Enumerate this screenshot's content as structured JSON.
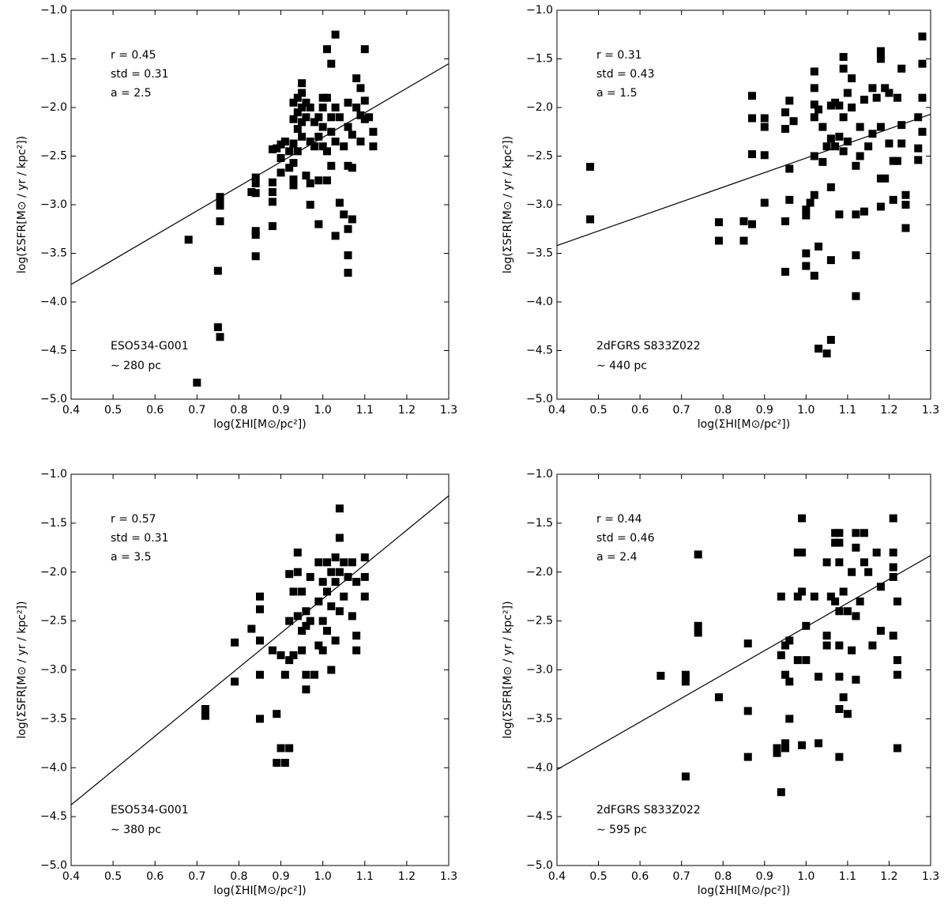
{
  "chart_data": [
    {
      "type": "scatter",
      "color": "#000000",
      "xlabel": "log(ΣHI[M⊙/pc²])",
      "ylabel": "log(ΣSFR[M⊙ / yr / kpc²])",
      "annotations": [
        "r = 0.45",
        "std = 0.31",
        "a = 2.5"
      ],
      "label": [
        "ESO534-G001",
        "∼ 280 pc"
      ],
      "xlim": [
        0.4,
        1.3
      ],
      "ylim": [
        -5,
        -1
      ],
      "xticks": [
        0.4,
        0.5,
        0.6,
        0.7,
        0.8,
        0.9,
        {
          "value": 1,
          "label": "1.0"
        },
        1.1,
        1.2,
        1.3
      ],
      "yticks": [
        {
          "value": -5,
          "label": "−5.0"
        },
        {
          "value": -4.5,
          "label": "−4.5"
        },
        {
          "value": -4,
          "label": "−4.0"
        },
        {
          "value": -3.5,
          "label": "−3.5"
        },
        {
          "value": -3,
          "label": "−3.0"
        },
        {
          "value": -2.5,
          "label": "−2.5"
        },
        {
          "value": -2,
          "label": "−2.0"
        },
        {
          "value": -1.5,
          "label": "−1.5"
        },
        {
          "value": -1,
          "label": "−1.0"
        }
      ],
      "fit_line": {
        "x": [
          0.4,
          1.3
        ],
        "values": [
          -3.82,
          -1.55
        ]
      },
      "x": [
        0.68,
        0.7,
        0.75,
        0.75,
        0.755,
        0.755,
        0.755,
        0.755,
        0.755,
        0.84,
        0.84,
        0.84,
        0.84,
        0.84,
        0.84,
        0.83,
        0.88,
        0.88,
        0.88,
        0.88,
        0.88,
        0.89,
        0.9,
        0.9,
        0.9,
        0.91,
        0.92,
        0.92,
        0.93,
        0.93,
        0.93,
        0.93,
        0.93,
        0.93,
        0.94,
        0.94,
        0.94,
        0.94,
        0.95,
        0.95,
        0.95,
        0.95,
        0.95,
        0.96,
        0.96,
        0.96,
        0.97,
        0.97,
        0.97,
        0.97,
        0.98,
        0.98,
        0.99,
        0.99,
        0.99,
        0.99,
        1.0,
        1.0,
        1.0,
        1.0,
        1.01,
        1.01,
        1.01,
        1.01,
        1.02,
        1.02,
        1.02,
        1.02,
        1.03,
        1.03,
        1.03,
        1.03,
        1.04,
        1.04,
        1.05,
        1.05,
        1.06,
        1.06,
        1.06,
        1.06,
        1.06,
        1.07,
        1.07,
        1.08,
        1.08,
        1.09,
        1.09,
        1.09,
        1.1,
        1.1,
        1.1,
        1.11,
        1.12,
        1.12,
        1.07,
        1.06
      ],
      "values": [
        -3.36,
        -4.83,
        -3.68,
        -4.26,
        -4.36,
        -2.92,
        -2.97,
        -3.01,
        -3.17,
        -2.72,
        -2.78,
        -2.88,
        -3.27,
        -3.31,
        -3.53,
        -2.87,
        -2.43,
        -2.77,
        -2.87,
        -2.97,
        -3.22,
        -2.42,
        -2.38,
        -2.52,
        -2.67,
        -2.35,
        -2.45,
        -2.62,
        -1.95,
        -2.12,
        -2.37,
        -2.57,
        -2.74,
        -2.8,
        -1.9,
        -2.05,
        -2.22,
        -2.45,
        -1.75,
        -1.85,
        -2.0,
        -2.15,
        -2.3,
        -1.95,
        -2.1,
        -2.7,
        -2.0,
        -2.35,
        -2.78,
        -3.0,
        -2.15,
        -2.4,
        -2.1,
        -2.3,
        -2.75,
        -3.2,
        -1.9,
        -2.0,
        -2.2,
        -2.4,
        -1.4,
        -1.9,
        -2.45,
        -2.75,
        -1.55,
        -2.1,
        -2.25,
        -2.6,
        -1.25,
        -2.0,
        -2.35,
        -3.32,
        -2.1,
        -2.98,
        -2.4,
        -3.1,
        -1.95,
        -2.2,
        -2.6,
        -3.52,
        -3.7,
        -2.28,
        -2.62,
        -1.7,
        -2.0,
        -1.8,
        -2.08,
        -2.35,
        -1.4,
        -1.93,
        -2.12,
        -2.1,
        -2.25,
        -2.4,
        -3.15,
        -3.25
      ]
    },
    {
      "type": "scatter",
      "color": "#000000",
      "xlabel": "log(ΣHI[M⊙/pc²])",
      "ylabel": "log(ΣSFR[M⊙ / yr / kpc²])",
      "annotations": [
        "r = 0.31",
        "std = 0.43",
        "a = 1.5"
      ],
      "label": [
        "2dFGRS S833Z022",
        "∼ 440 pc"
      ],
      "xlim": [
        0.4,
        1.3
      ],
      "ylim": [
        -5,
        -1
      ],
      "xticks": [
        0.4,
        0.5,
        0.6,
        0.7,
        0.8,
        0.9,
        {
          "value": 1,
          "label": "1.0"
        },
        1.1,
        1.2,
        1.3
      ],
      "yticks": [
        {
          "value": -5,
          "label": "−5.0"
        },
        {
          "value": -4.5,
          "label": "−4.5"
        },
        {
          "value": -4,
          "label": "−4.0"
        },
        {
          "value": -3.5,
          "label": "−3.5"
        },
        {
          "value": -3,
          "label": "−3.0"
        },
        {
          "value": -2.5,
          "label": "−2.5"
        },
        {
          "value": -2,
          "label": "−2.0"
        },
        {
          "value": -1.5,
          "label": "−1.5"
        },
        {
          "value": -1,
          "label": "−1.0"
        }
      ],
      "fit_line": {
        "x": [
          0.4,
          1.3
        ],
        "values": [
          -3.42,
          -2.07
        ]
      },
      "x": [
        0.48,
        0.48,
        0.79,
        0.79,
        0.85,
        0.85,
        0.87,
        0.87,
        0.87,
        0.87,
        0.9,
        0.9,
        0.9,
        0.9,
        0.95,
        0.95,
        0.95,
        0.95,
        0.96,
        0.96,
        0.96,
        0.97,
        1.0,
        1.0,
        1.0,
        1.0,
        1.01,
        1.02,
        1.02,
        1.02,
        1.02,
        1.02,
        1.02,
        1.02,
        1.03,
        1.03,
        1.03,
        1.04,
        1.04,
        1.05,
        1.05,
        1.06,
        1.06,
        1.06,
        1.06,
        1.06,
        1.07,
        1.07,
        1.08,
        1.08,
        1.08,
        1.09,
        1.09,
        1.09,
        1.09,
        1.1,
        1.1,
        1.11,
        1.11,
        1.12,
        1.12,
        1.12,
        1.12,
        1.13,
        1.13,
        1.14,
        1.14,
        1.15,
        1.16,
        1.16,
        1.17,
        1.18,
        1.18,
        1.18,
        1.18,
        1.18,
        1.19,
        1.19,
        1.2,
        1.2,
        1.21,
        1.21,
        1.22,
        1.22,
        1.23,
        1.23,
        1.23,
        1.24,
        1.24,
        1.24,
        1.27,
        1.27,
        1.27,
        1.28,
        1.28,
        1.28,
        1.28
      ],
      "values": [
        -2.61,
        -3.15,
        -3.18,
        -3.37,
        -3.17,
        -3.37,
        -1.88,
        -2.11,
        -2.48,
        -3.2,
        -2.11,
        -2.2,
        -2.49,
        -2.98,
        -3.69,
        -3.17,
        -2.22,
        -2.05,
        -1.93,
        -2.63,
        -2.95,
        -2.14,
        -3.05,
        -3.11,
        -3.5,
        -3.63,
        -2.98,
        -1.63,
        -1.8,
        -1.97,
        -2.1,
        -2.5,
        -2.9,
        -3.73,
        -2.02,
        -3.43,
        -4.48,
        -2.2,
        -2.56,
        -2.4,
        -4.53,
        -1.98,
        -2.32,
        -2.82,
        -3.57,
        -4.39,
        -1.95,
        -2.4,
        -1.98,
        -2.3,
        -3.1,
        -1.48,
        -1.6,
        -2.1,
        -2.45,
        -1.85,
        -2.35,
        -1.7,
        -2.0,
        -2.6,
        -3.1,
        -3.52,
        -3.94,
        -2.2,
        -2.5,
        -1.92,
        -3.07,
        -2.4,
        -1.8,
        -2.27,
        -1.9,
        -1.42,
        -1.5,
        -2.2,
        -2.73,
        -3.02,
        -1.8,
        -2.73,
        -1.85,
        -2.37,
        -2.55,
        -2.95,
        -1.9,
        -2.55,
        -1.6,
        -2.18,
        -2.37,
        -2.9,
        -3.24,
        -3.0,
        -2.1,
        -2.42,
        -2.54,
        -1.27,
        -1.55,
        -1.9,
        -2.25
      ]
    },
    {
      "type": "scatter",
      "color": "#000000",
      "xlabel": "log(ΣHI[M⊙/pc²])",
      "ylabel": "log(ΣSFR[M⊙ / yr / kpc²])",
      "annotations": [
        "r = 0.57",
        "std = 0.31",
        "a = 3.5"
      ],
      "label": [
        "ESO534-G001",
        "∼ 380 pc"
      ],
      "xlim": [
        0.4,
        1.3
      ],
      "ylim": [
        -5,
        -1
      ],
      "xticks": [
        0.4,
        0.5,
        0.6,
        0.7,
        0.8,
        0.9,
        {
          "value": 1,
          "label": "1.0"
        },
        1.1,
        1.2,
        1.3
      ],
      "yticks": [
        {
          "value": -5,
          "label": "−5.0"
        },
        {
          "value": -4.5,
          "label": "−4.5"
        },
        {
          "value": -4,
          "label": "−4.0"
        },
        {
          "value": -3.5,
          "label": "−3.5"
        },
        {
          "value": -3,
          "label": "−3.0"
        },
        {
          "value": -2.5,
          "label": "−2.5"
        },
        {
          "value": -2,
          "label": "−2.0"
        },
        {
          "value": -1.5,
          "label": "−1.5"
        },
        {
          "value": -1,
          "label": "−1.0"
        }
      ],
      "fit_line": {
        "x": [
          0.4,
          1.3
        ],
        "values": [
          -4.38,
          -1.22
        ]
      },
      "x": [
        0.72,
        0.72,
        0.79,
        0.79,
        0.83,
        0.85,
        0.85,
        0.85,
        0.85,
        0.85,
        0.88,
        0.89,
        0.89,
        0.9,
        0.9,
        0.91,
        0.91,
        0.92,
        0.92,
        0.92,
        0.92,
        0.93,
        0.93,
        0.94,
        0.94,
        0.94,
        0.95,
        0.95,
        0.95,
        0.96,
        0.96,
        0.96,
        0.97,
        0.97,
        0.98,
        0.99,
        0.99,
        0.99,
        1.0,
        1.0,
        1.0,
        1.01,
        1.01,
        1.01,
        1.02,
        1.02,
        1.02,
        1.03,
        1.03,
        1.03,
        1.04,
        1.04,
        1.04,
        1.04,
        1.05,
        1.05,
        1.06,
        1.07,
        1.07,
        1.08,
        1.08,
        1.08,
        1.1,
        1.1,
        1.1,
        0.96
      ],
      "values": [
        -3.4,
        -3.47,
        -2.72,
        -3.12,
        -2.58,
        -2.25,
        -2.38,
        -2.7,
        -3.05,
        -3.5,
        -2.8,
        -3.45,
        -3.95,
        -3.8,
        -2.85,
        -3.05,
        -3.95,
        -3.8,
        -2.9,
        -2.02,
        -2.5,
        -2.2,
        -2.85,
        -1.8,
        -2.0,
        -2.45,
        -2.2,
        -2.6,
        -2.8,
        -2.4,
        -3.05,
        -3.2,
        -2.05,
        -2.5,
        -3.05,
        -1.9,
        -2.3,
        -2.75,
        -2.1,
        -2.5,
        -2.8,
        -1.9,
        -2.2,
        -2.6,
        -2.0,
        -2.35,
        -3.0,
        -1.85,
        -2.1,
        -2.7,
        -1.35,
        -1.65,
        -2.0,
        -2.4,
        -1.9,
        -2.25,
        -2.05,
        -1.9,
        -2.45,
        -2.1,
        -2.65,
        -2.8,
        -1.85,
        -2.05,
        -2.25,
        -2.55
      ]
    },
    {
      "type": "scatter",
      "color": "#000000",
      "xlabel": "log(ΣHI[M⊙/pc²])",
      "ylabel": "log(ΣSFR[M⊙ / yr / kpc²])",
      "annotations": [
        "r = 0.44",
        "std = 0.46",
        "a = 2.4"
      ],
      "label": [
        "2dFGRS S833Z022",
        "∼ 595 pc"
      ],
      "xlim": [
        0.4,
        1.3
      ],
      "ylim": [
        -5,
        -1
      ],
      "xticks": [
        0.4,
        0.5,
        0.6,
        0.7,
        0.8,
        0.9,
        {
          "value": 1,
          "label": "1.0"
        },
        1.1,
        1.2,
        1.3
      ],
      "yticks": [
        {
          "value": -5,
          "label": "−5.0"
        },
        {
          "value": -4.5,
          "label": "−4.5"
        },
        {
          "value": -4,
          "label": "−4.0"
        },
        {
          "value": -3.5,
          "label": "−3.5"
        },
        {
          "value": -3,
          "label": "−3.0"
        },
        {
          "value": -2.5,
          "label": "−2.5"
        },
        {
          "value": -2,
          "label": "−2.0"
        },
        {
          "value": -1.5,
          "label": "−1.5"
        },
        {
          "value": -1,
          "label": "−1.0"
        }
      ],
      "fit_line": {
        "x": [
          0.4,
          1.3
        ],
        "values": [
          -4.02,
          -1.83
        ]
      },
      "x": [
        0.65,
        0.71,
        0.71,
        0.71,
        0.74,
        0.74,
        0.74,
        0.79,
        0.86,
        0.86,
        0.86,
        0.93,
        0.93,
        0.94,
        0.94,
        0.94,
        0.95,
        0.95,
        0.95,
        0.95,
        0.96,
        0.96,
        0.96,
        0.98,
        0.98,
        0.98,
        0.99,
        0.99,
        0.99,
        0.99,
        1.0,
        1.0,
        1.02,
        1.03,
        1.03,
        1.05,
        1.05,
        1.06,
        1.07,
        1.07,
        1.08,
        1.08,
        1.08,
        1.08,
        1.08,
        1.08,
        1.08,
        1.08,
        1.09,
        1.09,
        1.1,
        1.1,
        1.11,
        1.11,
        1.12,
        1.12,
        1.12,
        1.12,
        1.13,
        1.14,
        1.14,
        1.15,
        1.16,
        1.17,
        1.18,
        1.18,
        1.21,
        1.21,
        1.21,
        1.21,
        1.22,
        1.22,
        1.22,
        1.22,
        1.21,
        1.05,
        1.07
      ],
      "values": [
        -3.06,
        -3.05,
        -3.12,
        -4.09,
        -1.82,
        -2.55,
        -2.62,
        -3.28,
        -2.73,
        -3.42,
        -3.89,
        -3.8,
        -3.85,
        -2.25,
        -2.85,
        -4.25,
        -3.05,
        -3.75,
        -3.8,
        -2.75,
        -3.12,
        -3.5,
        -2.7,
        -1.8,
        -2.25,
        -2.9,
        -1.45,
        -1.8,
        -2.2,
        -3.77,
        -2.55,
        -2.9,
        -2.25,
        -3.07,
        -3.75,
        -2.65,
        -2.75,
        -2.25,
        -1.6,
        -1.7,
        -1.6,
        -1.7,
        -1.9,
        -2.4,
        -2.75,
        -3.07,
        -3.4,
        -3.89,
        -2.2,
        -3.28,
        -2.4,
        -3.45,
        -2.0,
        -2.8,
        -1.6,
        -1.75,
        -2.45,
        -3.1,
        -2.3,
        -1.6,
        -1.9,
        -2.0,
        -2.75,
        -1.8,
        -2.15,
        -2.6,
        -1.45,
        -1.8,
        -2.05,
        -2.65,
        -2.3,
        -2.9,
        -3.05,
        -3.8,
        -1.95,
        -1.9,
        -2.3
      ]
    }
  ]
}
